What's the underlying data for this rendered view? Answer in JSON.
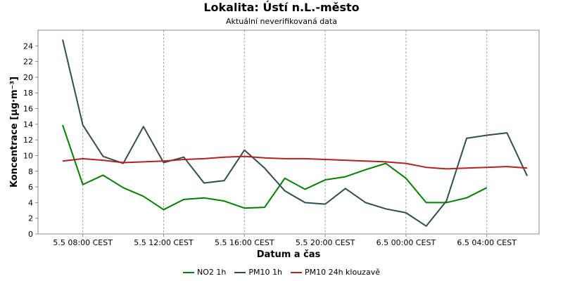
{
  "chart_data": {
    "type": "line",
    "title": "Lokalita: Ústí n.L.-město",
    "subtitle": "Aktuální neverifikovaná data",
    "xlabel": "Datum a čas",
    "ylabel": "Koncentrace [µg·m⁻³]",
    "ylim": [
      0,
      26
    ],
    "yticks": [
      0,
      2,
      4,
      6,
      8,
      10,
      12,
      14,
      16,
      18,
      20,
      22,
      24
    ],
    "xticks": [
      "5.5 08:00 CEST",
      "5.5 12:00 CEST",
      "5.5 16:00 CEST",
      "5.5 20:00 CEST",
      "6.5 00:00 CEST",
      "6.5 04:00 CEST"
    ],
    "x": [
      "5.5 07:00",
      "5.5 08:00",
      "5.5 09:00",
      "5.5 10:00",
      "5.5 11:00",
      "5.5 12:00",
      "5.5 13:00",
      "5.5 14:00",
      "5.5 15:00",
      "5.5 16:00",
      "5.5 17:00",
      "5.5 18:00",
      "5.5 19:00",
      "5.5 20:00",
      "5.5 21:00",
      "5.5 22:00",
      "5.5 23:00",
      "6.5 00:00",
      "6.5 01:00",
      "6.5 02:00",
      "6.5 03:00",
      "6.5 04:00",
      "6.5 05:00",
      "6.5 06:00"
    ],
    "grid": true,
    "legend_position": "bottom",
    "series": [
      {
        "name": "NO2 1h",
        "color": "#008000",
        "values": [
          13.9,
          6.3,
          7.5,
          5.9,
          4.8,
          3.1,
          4.4,
          4.6,
          4.2,
          3.3,
          3.4,
          7.1,
          5.7,
          6.9,
          7.3,
          8.2,
          9.0,
          7.1,
          4.0,
          4.0,
          4.6,
          5.9,
          null,
          null
        ]
      },
      {
        "name": "PM10 1h",
        "color": "#2f4f4f",
        "values": [
          24.8,
          13.9,
          9.9,
          9.0,
          13.7,
          9.1,
          9.8,
          6.5,
          6.8,
          10.7,
          8.4,
          5.5,
          4.0,
          3.8,
          5.8,
          4.0,
          3.2,
          2.7,
          1.0,
          4.2,
          12.2,
          12.6,
          12.9,
          7.4
        ]
      },
      {
        "name": "PM10 24h klouzavě",
        "color": "#b22222",
        "values": [
          9.3,
          9.6,
          9.4,
          9.1,
          9.2,
          9.3,
          9.5,
          9.6,
          9.8,
          9.9,
          9.7,
          9.6,
          9.6,
          9.5,
          9.4,
          9.3,
          9.2,
          9.0,
          8.5,
          8.3,
          8.4,
          8.5,
          8.6,
          8.4
        ]
      }
    ]
  }
}
